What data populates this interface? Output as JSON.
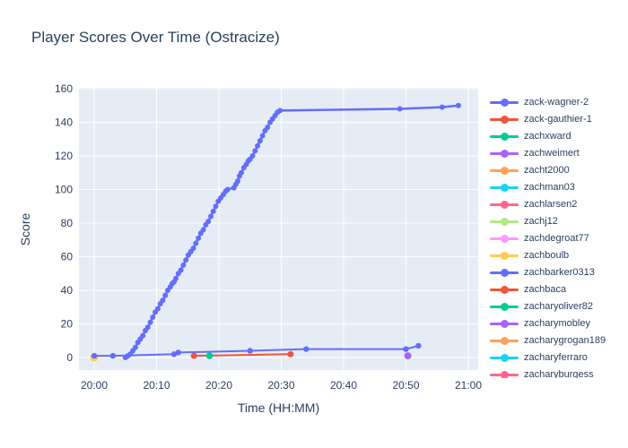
{
  "title": "Player Scores Over Time (Ostracize)",
  "axes": {
    "x_title": "Time (HH:MM)",
    "y_title": "Score",
    "x_ticks": [
      {
        "minutes": 0,
        "label": "20:00"
      },
      {
        "minutes": 10,
        "label": "20:10"
      },
      {
        "minutes": 20,
        "label": "20:20"
      },
      {
        "minutes": 30,
        "label": "20:30"
      },
      {
        "minutes": 40,
        "label": "20:40"
      },
      {
        "minutes": 50,
        "label": "20:50"
      },
      {
        "minutes": 60,
        "label": "21:00"
      }
    ],
    "y_ticks": [
      0,
      20,
      40,
      60,
      80,
      100,
      120,
      140,
      160
    ]
  },
  "colors": {
    "text": "#2a3f5f",
    "plot_background": "#E5ECF6",
    "gridline": "#ffffff",
    "paper_background": "#ffffff"
  },
  "chart_data": {
    "type": "line",
    "title": "Player Scores Over Time (Ostracize)",
    "xlabel": "Time (HH:MM)",
    "ylabel": "Score",
    "x_unit": "minutes after 20:00",
    "xlim": [
      -2.5,
      61.5
    ],
    "ylim": [
      -7.5,
      160.5
    ],
    "grid": true,
    "legend_position": "right",
    "series": [
      {
        "name": "zack-wagner-2",
        "color": "#636EFA",
        "line_width": 2.5,
        "marker_r": 3,
        "points": [
          [
            5,
            0
          ],
          [
            5.4,
            1
          ],
          [
            5.8,
            2
          ],
          [
            6.2,
            4
          ],
          [
            6.6,
            6
          ],
          [
            7,
            9
          ],
          [
            7.4,
            11
          ],
          [
            7.8,
            13
          ],
          [
            8.2,
            16
          ],
          [
            8.6,
            18
          ],
          [
            9,
            21
          ],
          [
            9.4,
            24
          ],
          [
            9.8,
            27
          ],
          [
            10.2,
            29
          ],
          [
            10.6,
            32
          ],
          [
            11,
            34
          ],
          [
            11.4,
            37
          ],
          [
            11.8,
            40
          ],
          [
            12.2,
            42
          ],
          [
            12.5,
            44
          ],
          [
            12.8,
            45
          ],
          [
            13.1,
            47
          ],
          [
            13.5,
            50
          ],
          [
            13.9,
            52
          ],
          [
            14.3,
            55
          ],
          [
            14.7,
            58
          ],
          [
            15.1,
            61
          ],
          [
            15.5,
            63
          ],
          [
            15.9,
            65
          ],
          [
            16.3,
            68
          ],
          [
            16.7,
            71
          ],
          [
            17.1,
            74
          ],
          [
            17.5,
            76
          ],
          [
            17.9,
            79
          ],
          [
            18.3,
            81
          ],
          [
            18.7,
            84
          ],
          [
            19.1,
            87
          ],
          [
            19.5,
            90
          ],
          [
            19.9,
            93
          ],
          [
            20.3,
            95
          ],
          [
            20.7,
            97
          ],
          [
            21.1,
            99
          ],
          [
            21.4,
            100
          ],
          [
            22.4,
            101
          ],
          [
            22.7,
            103
          ],
          [
            23,
            105
          ],
          [
            23.3,
            108
          ],
          [
            23.6,
            110
          ],
          [
            24,
            113
          ],
          [
            24.4,
            115
          ],
          [
            24.7,
            117
          ],
          [
            25,
            118
          ],
          [
            25.4,
            120
          ],
          [
            25.8,
            123
          ],
          [
            26.2,
            126
          ],
          [
            26.6,
            129
          ],
          [
            27,
            132
          ],
          [
            27.4,
            135
          ],
          [
            27.8,
            137
          ],
          [
            28.2,
            140
          ],
          [
            28.6,
            142
          ],
          [
            29,
            144
          ],
          [
            29.4,
            146
          ],
          [
            29.8,
            147
          ],
          [
            49,
            148
          ],
          [
            55.8,
            149
          ],
          [
            58.4,
            150
          ]
        ]
      },
      {
        "name": "zack-gauthier-1",
        "color": "#EF553B",
        "line_width": 2,
        "marker_r": 4,
        "points": [
          [
            0,
            0
          ]
        ]
      },
      {
        "name": "zachxward",
        "color": "#00CC96",
        "line_width": 2,
        "marker_r": 4,
        "points": [
          [
            0,
            0
          ]
        ]
      },
      {
        "name": "zachweimert",
        "color": "#AB63FA",
        "line_width": 2,
        "marker_r": 4,
        "points": [
          [
            0,
            0
          ]
        ]
      },
      {
        "name": "zacht2000",
        "color": "#FFA15A",
        "line_width": 2,
        "marker_r": 4,
        "points": [
          [
            0,
            0
          ]
        ]
      },
      {
        "name": "zachman03",
        "color": "#19D3F3",
        "line_width": 2,
        "marker_r": 4,
        "points": [
          [
            0,
            0
          ]
        ]
      },
      {
        "name": "zachlarsen2",
        "color": "#FF6692",
        "line_width": 2,
        "marker_r": 4,
        "points": [
          [
            0,
            0
          ]
        ]
      },
      {
        "name": "zachj12",
        "color": "#B6E880",
        "line_width": 2,
        "marker_r": 4,
        "points": [
          [
            0,
            0
          ]
        ]
      },
      {
        "name": "zachdegroat77",
        "color": "#FF97FF",
        "line_width": 2,
        "marker_r": 4,
        "points": [
          [
            0,
            0
          ]
        ]
      },
      {
        "name": "zachboulb",
        "color": "#FECB52",
        "line_width": 2,
        "marker_r": 4.5,
        "points": [
          [
            0,
            0
          ]
        ]
      },
      {
        "name": "zachbarker0313",
        "color": "#636EFA",
        "line_width": 2,
        "marker_r": 3.2,
        "points": [
          [
            0,
            1
          ],
          [
            3,
            1
          ],
          [
            12.8,
            2
          ],
          [
            13.5,
            3
          ],
          [
            25,
            4
          ],
          [
            34,
            5
          ],
          [
            50,
            5
          ],
          [
            52,
            7
          ]
        ]
      },
      {
        "name": "zachbaca",
        "color": "#EF553B",
        "line_width": 2,
        "marker_r": 3.5,
        "points": [
          [
            16,
            1
          ],
          [
            31.5,
            2
          ]
        ]
      },
      {
        "name": "zacharyoliver82",
        "color": "#00CC96",
        "line_width": 2,
        "marker_r": 3.8,
        "points": [
          [
            18.5,
            1
          ]
        ]
      },
      {
        "name": "zacharymobley",
        "color": "#AB63FA",
        "line_width": 2,
        "marker_r": 4,
        "points": [
          [
            50.3,
            1
          ]
        ]
      },
      {
        "name": "zacharygrogan189",
        "color": "#FFA15A",
        "line_width": 2,
        "marker_r": 4,
        "points": []
      },
      {
        "name": "zacharyferraro",
        "color": "#19D3F3",
        "line_width": 2,
        "marker_r": 4,
        "points": []
      },
      {
        "name": "zacharyburgess",
        "color": "#FF6692",
        "line_width": 2,
        "marker_r": 4,
        "points": []
      }
    ]
  }
}
